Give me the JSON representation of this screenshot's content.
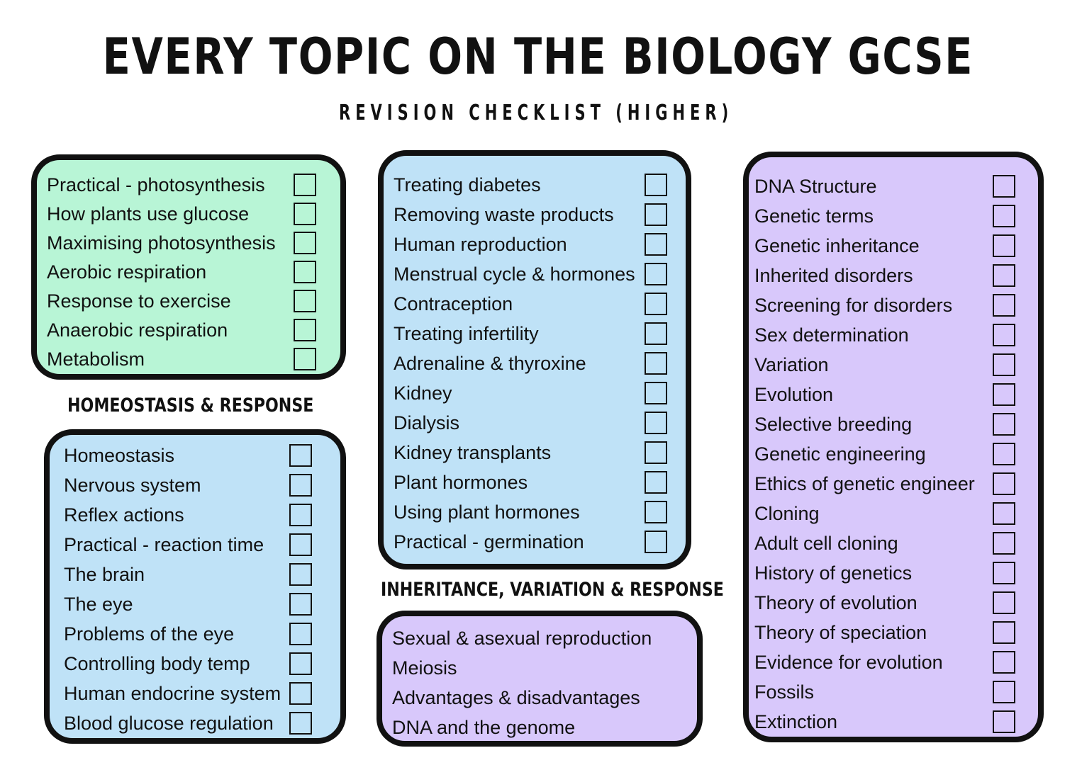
{
  "title": "EVERY TOPIC ON THE BIOLOGY GCSE",
  "subtitle": "REVISION CHECKLIST (HIGHER)",
  "headings": {
    "homeostasis": "HOMEOSTASIS & RESPONSE",
    "inheritance": "INHERITANCE, VARIATION & RESPONSE"
  },
  "box_green": {
    "color": "#b8f5d6",
    "items": [
      "Practical - photosynthesis",
      "How plants use glucose",
      "Maximising photosynthesis",
      "Aerobic respiration",
      "Response to exercise",
      "Anaerobic respiration",
      "Metabolism"
    ]
  },
  "box_blue_left": {
    "color": "#bfe2f7",
    "items": [
      "Homeostasis",
      "Nervous system",
      "Reflex actions",
      "Practical - reaction time",
      "The brain",
      "The eye",
      "Problems of the eye",
      "Controlling body temp",
      "Human endocrine system",
      "Blood glucose regulation"
    ]
  },
  "box_blue_middle": {
    "color": "#bfe2f7",
    "items": [
      "Treating diabetes",
      "Removing waste products",
      "Human reproduction",
      "Menstrual cycle & hormones",
      "Contraception",
      "Treating infertility",
      "Adrenaline & thyroxine",
      "Kidney",
      "Dialysis",
      "Kidney transplants",
      "Plant hormones",
      "Using plant hormones",
      "Practical - germination"
    ]
  },
  "box_purple_middle": {
    "color": "#d8c8fb",
    "items": [
      "Sexual & asexual reproduction",
      "Meiosis",
      "Advantages & disadvantages",
      "DNA and the genome"
    ]
  },
  "box_purple_right": {
    "color": "#d8c8fb",
    "items": [
      "DNA Structure",
      "Genetic terms",
      "Genetic inheritance",
      "Inherited disorders",
      "Screening for disorders",
      "Sex determination",
      "Variation",
      "Evolution",
      "Selective breeding",
      "Genetic engineering",
      "Ethics of genetic engineer",
      "Cloning",
      "Adult cell cloning",
      "History of genetics",
      "Theory of evolution",
      "Theory of speciation",
      "Evidence for evolution",
      "Fossils",
      "Extinction"
    ]
  }
}
